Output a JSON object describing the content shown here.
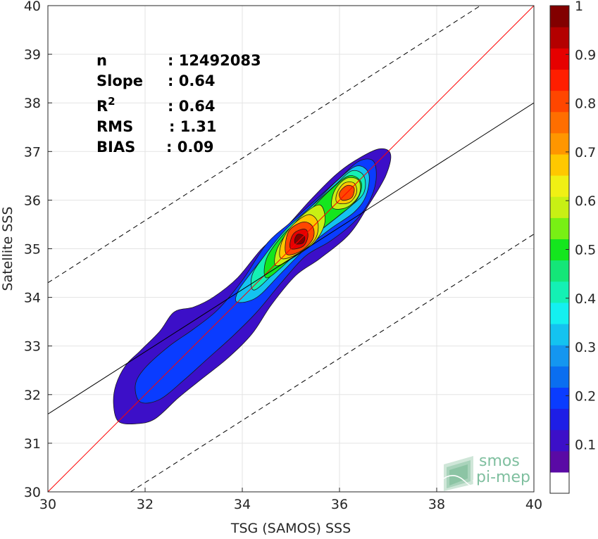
{
  "chart_data": {
    "type": "heatmap",
    "subtype": "density-contour",
    "xlabel": "TSG (SAMOS) SSS",
    "ylabel": "Satellite SSS",
    "xlim": [
      30,
      40
    ],
    "ylim": [
      30,
      40
    ],
    "xticks": [
      30,
      32,
      34,
      36,
      38,
      40
    ],
    "yticks": [
      30,
      31,
      32,
      33,
      34,
      35,
      36,
      37,
      38,
      39,
      40
    ],
    "grid": true,
    "stats": [
      {
        "label": "n",
        "value": ": 12492083"
      },
      {
        "label": "Slope",
        "value": ": 0.64"
      },
      {
        "label": "R",
        "sup": "2",
        "value": ": 0.64"
      },
      {
        "label": "RMS",
        "value": ": 1.31"
      },
      {
        "label": "BIAS",
        "value": ": 0.09"
      }
    ],
    "lines": {
      "identity": {
        "from": [
          30,
          30
        ],
        "to": [
          40,
          40
        ],
        "color": "#ff0000"
      },
      "fit": {
        "from": [
          30,
          31.6
        ],
        "to": [
          40,
          38.0
        ],
        "color": "#000000"
      },
      "upper_bound": {
        "from": [
          30,
          34.3
        ],
        "to": [
          38.9,
          40
        ],
        "color": "#000000",
        "dash": true
      },
      "lower_bound": {
        "from": [
          31.7,
          30
        ],
        "to": [
          40,
          35.3
        ],
        "color": "#000000",
        "dash": true
      }
    },
    "colorbar": {
      "ticks": [
        0.1,
        0.2,
        0.3,
        0.4,
        0.5,
        0.6,
        0.7,
        0.8,
        0.9,
        1
      ],
      "tick_labels": [
        "0.1",
        "0.2",
        "0.3",
        "0.4",
        "0.5",
        "0.6",
        "0.7",
        "0.8",
        "0.9",
        "1"
      ],
      "range": [
        0,
        1
      ],
      "colors": [
        "#ffffff",
        "#5a0aa5",
        "#3c0fc8",
        "#1e1ee6",
        "#0a3cff",
        "#0a6ef0",
        "#1496f0",
        "#14c3f0",
        "#14f0f0",
        "#14f0b4",
        "#14e678",
        "#14e61e",
        "#78f014",
        "#c8f014",
        "#f0f014",
        "#ffc800",
        "#ff9600",
        "#ff6e00",
        "#ff4600",
        "#ff1e00",
        "#e60000",
        "#b40000",
        "#820000"
      ]
    },
    "contours": [
      {
        "level": 0.1,
        "points": [
          [
            31.45,
            31.45
          ],
          [
            31.8,
            31.4
          ],
          [
            32.2,
            31.5
          ],
          [
            32.7,
            31.95
          ],
          [
            33.2,
            32.35
          ],
          [
            33.7,
            32.75
          ],
          [
            34.2,
            33.25
          ],
          [
            34.6,
            33.85
          ],
          [
            35.1,
            34.45
          ],
          [
            35.6,
            34.8
          ],
          [
            36.2,
            35.3
          ],
          [
            36.6,
            35.9
          ],
          [
            36.95,
            36.5
          ],
          [
            37.05,
            36.95
          ],
          [
            36.8,
            37.05
          ],
          [
            36.3,
            36.8
          ],
          [
            35.9,
            36.5
          ],
          [
            35.4,
            36.0
          ],
          [
            34.9,
            35.45
          ],
          [
            34.4,
            35.0
          ],
          [
            33.9,
            34.4
          ],
          [
            33.4,
            34.0
          ],
          [
            33.0,
            33.8
          ],
          [
            32.6,
            33.7
          ],
          [
            32.3,
            33.3
          ],
          [
            31.9,
            32.9
          ],
          [
            31.6,
            32.6
          ],
          [
            31.4,
            32.2
          ],
          [
            31.35,
            31.8
          ]
        ]
      },
      {
        "level": 0.2,
        "points": [
          [
            31.9,
            31.85
          ],
          [
            32.3,
            31.9
          ],
          [
            32.8,
            32.3
          ],
          [
            33.3,
            32.75
          ],
          [
            33.8,
            33.2
          ],
          [
            34.3,
            33.7
          ],
          [
            34.8,
            34.3
          ],
          [
            35.3,
            34.85
          ],
          [
            35.8,
            35.15
          ],
          [
            36.3,
            35.55
          ],
          [
            36.6,
            35.95
          ],
          [
            36.75,
            36.4
          ],
          [
            36.7,
            36.8
          ],
          [
            36.4,
            36.8
          ],
          [
            36.0,
            36.45
          ],
          [
            35.5,
            36.0
          ],
          [
            35.0,
            35.55
          ],
          [
            34.5,
            35.1
          ],
          [
            34.0,
            34.35
          ],
          [
            33.5,
            33.75
          ],
          [
            33.0,
            33.35
          ],
          [
            32.5,
            33.0
          ],
          [
            32.0,
            32.55
          ],
          [
            31.8,
            32.2
          ]
        ]
      },
      {
        "level": 0.3,
        "points": [
          [
            33.9,
            33.9
          ],
          [
            34.3,
            34.0
          ],
          [
            34.8,
            34.5
          ],
          [
            35.3,
            35.0
          ],
          [
            35.8,
            35.4
          ],
          [
            36.3,
            35.75
          ],
          [
            36.55,
            36.1
          ],
          [
            36.6,
            36.55
          ],
          [
            36.35,
            36.7
          ],
          [
            35.95,
            36.4
          ],
          [
            35.5,
            35.95
          ],
          [
            35.0,
            35.45
          ],
          [
            34.5,
            34.9
          ],
          [
            34.1,
            34.4
          ],
          [
            33.9,
            34.1
          ]
        ]
      },
      {
        "level": 0.4,
        "points": [
          [
            34.25,
            34.15
          ],
          [
            34.7,
            34.55
          ],
          [
            35.2,
            35.05
          ],
          [
            35.7,
            35.45
          ],
          [
            36.2,
            35.85
          ],
          [
            36.5,
            36.15
          ],
          [
            36.5,
            36.5
          ],
          [
            36.25,
            36.6
          ],
          [
            35.9,
            36.3
          ],
          [
            35.4,
            35.85
          ],
          [
            34.9,
            35.4
          ],
          [
            34.45,
            34.85
          ],
          [
            34.2,
            34.45
          ]
        ]
      },
      {
        "level": 0.5,
        "points": [
          [
            34.5,
            34.4
          ],
          [
            34.95,
            34.75
          ],
          [
            35.45,
            35.25
          ],
          [
            35.95,
            35.65
          ],
          [
            36.35,
            36.0
          ],
          [
            36.45,
            36.35
          ],
          [
            36.2,
            36.5
          ],
          [
            35.8,
            36.2
          ],
          [
            35.35,
            35.75
          ],
          [
            34.85,
            35.3
          ],
          [
            34.5,
            34.8
          ]
        ]
      },
      {
        "level": 0.6,
        "points": [
          [
            34.7,
            34.65
          ],
          [
            35.1,
            34.85
          ],
          [
            35.5,
            35.15
          ],
          [
            35.7,
            35.55
          ],
          [
            35.6,
            35.9
          ],
          [
            35.25,
            35.7
          ],
          [
            34.9,
            35.3
          ],
          [
            34.7,
            34.95
          ]
        ]
      },
      {
        "level": 0.6,
        "points": [
          [
            35.85,
            35.85
          ],
          [
            36.15,
            35.85
          ],
          [
            36.4,
            36.1
          ],
          [
            36.4,
            36.4
          ],
          [
            36.15,
            36.45
          ],
          [
            35.9,
            36.2
          ]
        ]
      },
      {
        "level": 0.7,
        "points": [
          [
            34.8,
            34.8
          ],
          [
            35.15,
            34.9
          ],
          [
            35.5,
            35.2
          ],
          [
            35.55,
            35.55
          ],
          [
            35.35,
            35.7
          ],
          [
            35.0,
            35.45
          ],
          [
            34.8,
            35.1
          ]
        ]
      },
      {
        "level": 0.7,
        "points": [
          [
            35.95,
            35.95
          ],
          [
            36.2,
            35.95
          ],
          [
            36.35,
            36.15
          ],
          [
            36.3,
            36.35
          ],
          [
            36.1,
            36.35
          ],
          [
            35.95,
            36.15
          ]
        ]
      },
      {
        "level": 0.8,
        "points": [
          [
            34.9,
            34.9
          ],
          [
            35.2,
            34.95
          ],
          [
            35.45,
            35.2
          ],
          [
            35.45,
            35.45
          ],
          [
            35.25,
            35.55
          ],
          [
            34.95,
            35.35
          ]
        ]
      },
      {
        "level": 0.8,
        "points": [
          [
            36.05,
            36.0
          ],
          [
            36.25,
            36.05
          ],
          [
            36.3,
            36.25
          ],
          [
            36.15,
            36.3
          ],
          [
            36.0,
            36.15
          ]
        ]
      },
      {
        "level": 0.9,
        "points": [
          [
            35.0,
            35.0
          ],
          [
            35.25,
            35.05
          ],
          [
            35.35,
            35.25
          ],
          [
            35.3,
            35.4
          ],
          [
            35.1,
            35.35
          ],
          [
            35.0,
            35.2
          ]
        ]
      },
      {
        "level": 1.0,
        "points": [
          [
            35.1,
            35.1
          ],
          [
            35.25,
            35.12
          ],
          [
            35.28,
            35.25
          ],
          [
            35.15,
            35.3
          ],
          [
            35.08,
            35.2
          ]
        ]
      }
    ]
  },
  "logo": {
    "line1": "smos",
    "line2": "pi-mep"
  }
}
